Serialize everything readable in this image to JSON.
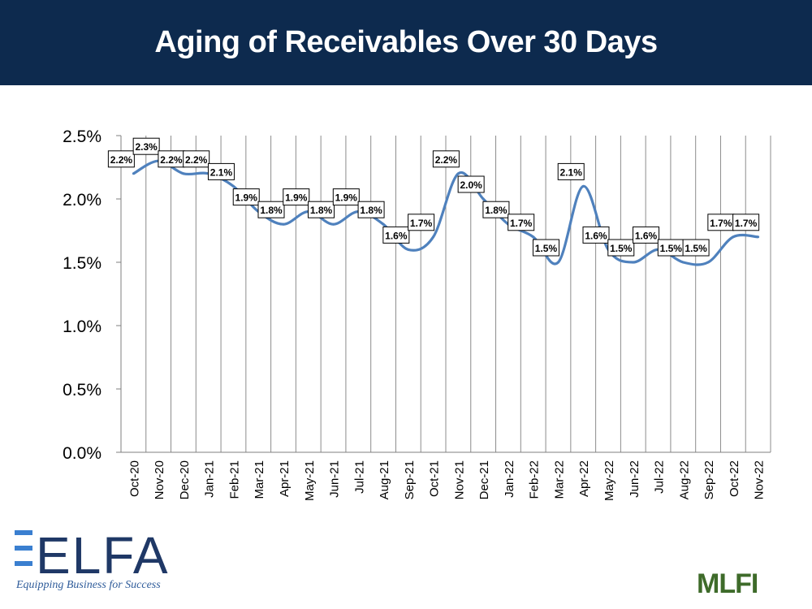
{
  "title": "Aging of Receivables Over 30 Days",
  "logos": {
    "elfa": "ELFA",
    "elfa_tagline": "Equipping Business for Success",
    "mlfi": "MLFI"
  },
  "chart_data": {
    "type": "line",
    "title": "",
    "xlabel": "",
    "ylabel": "",
    "ylim": [
      0,
      2.5
    ],
    "yticks": [
      "0.0%",
      "0.5%",
      "1.0%",
      "1.5%",
      "2.0%",
      "2.5%"
    ],
    "grid": "vertical",
    "categories": [
      "Oct-20",
      "Nov-20",
      "Dec-20",
      "Jan-21",
      "Feb-21",
      "Mar-21",
      "Apr-21",
      "May-21",
      "Jun-21",
      "Jul-21",
      "Aug-21",
      "Sep-21",
      "Oct-21",
      "Nov-21",
      "Dec-21",
      "Jan-22",
      "Feb-22",
      "Mar-22",
      "Apr-22",
      "May-22",
      "Jun-22",
      "Jul-22",
      "Aug-22",
      "Sep-22",
      "Oct-22",
      "Nov-22"
    ],
    "values": [
      2.2,
      2.3,
      2.2,
      2.2,
      2.1,
      1.9,
      1.8,
      1.9,
      1.8,
      1.9,
      1.8,
      1.6,
      1.7,
      2.2,
      2.0,
      1.8,
      1.7,
      1.5,
      2.1,
      1.6,
      1.5,
      1.6,
      1.5,
      1.5,
      1.7,
      1.7
    ],
    "labels": [
      "2.2%",
      "2.3%",
      "2.2%",
      "2.2%",
      "2.1%",
      "1.9%",
      "1.8%",
      "1.9%",
      "1.8%",
      "1.9%",
      "1.8%",
      "1.6%",
      "1.7%",
      "2.2%",
      "2.0%",
      "1.8%",
      "1.7%",
      "1.5%",
      "2.1%",
      "1.6%",
      "1.5%",
      "1.6%",
      "1.5%",
      "1.5%",
      "1.7%",
      "1.7%"
    ],
    "line_color": "#4f81bd"
  }
}
